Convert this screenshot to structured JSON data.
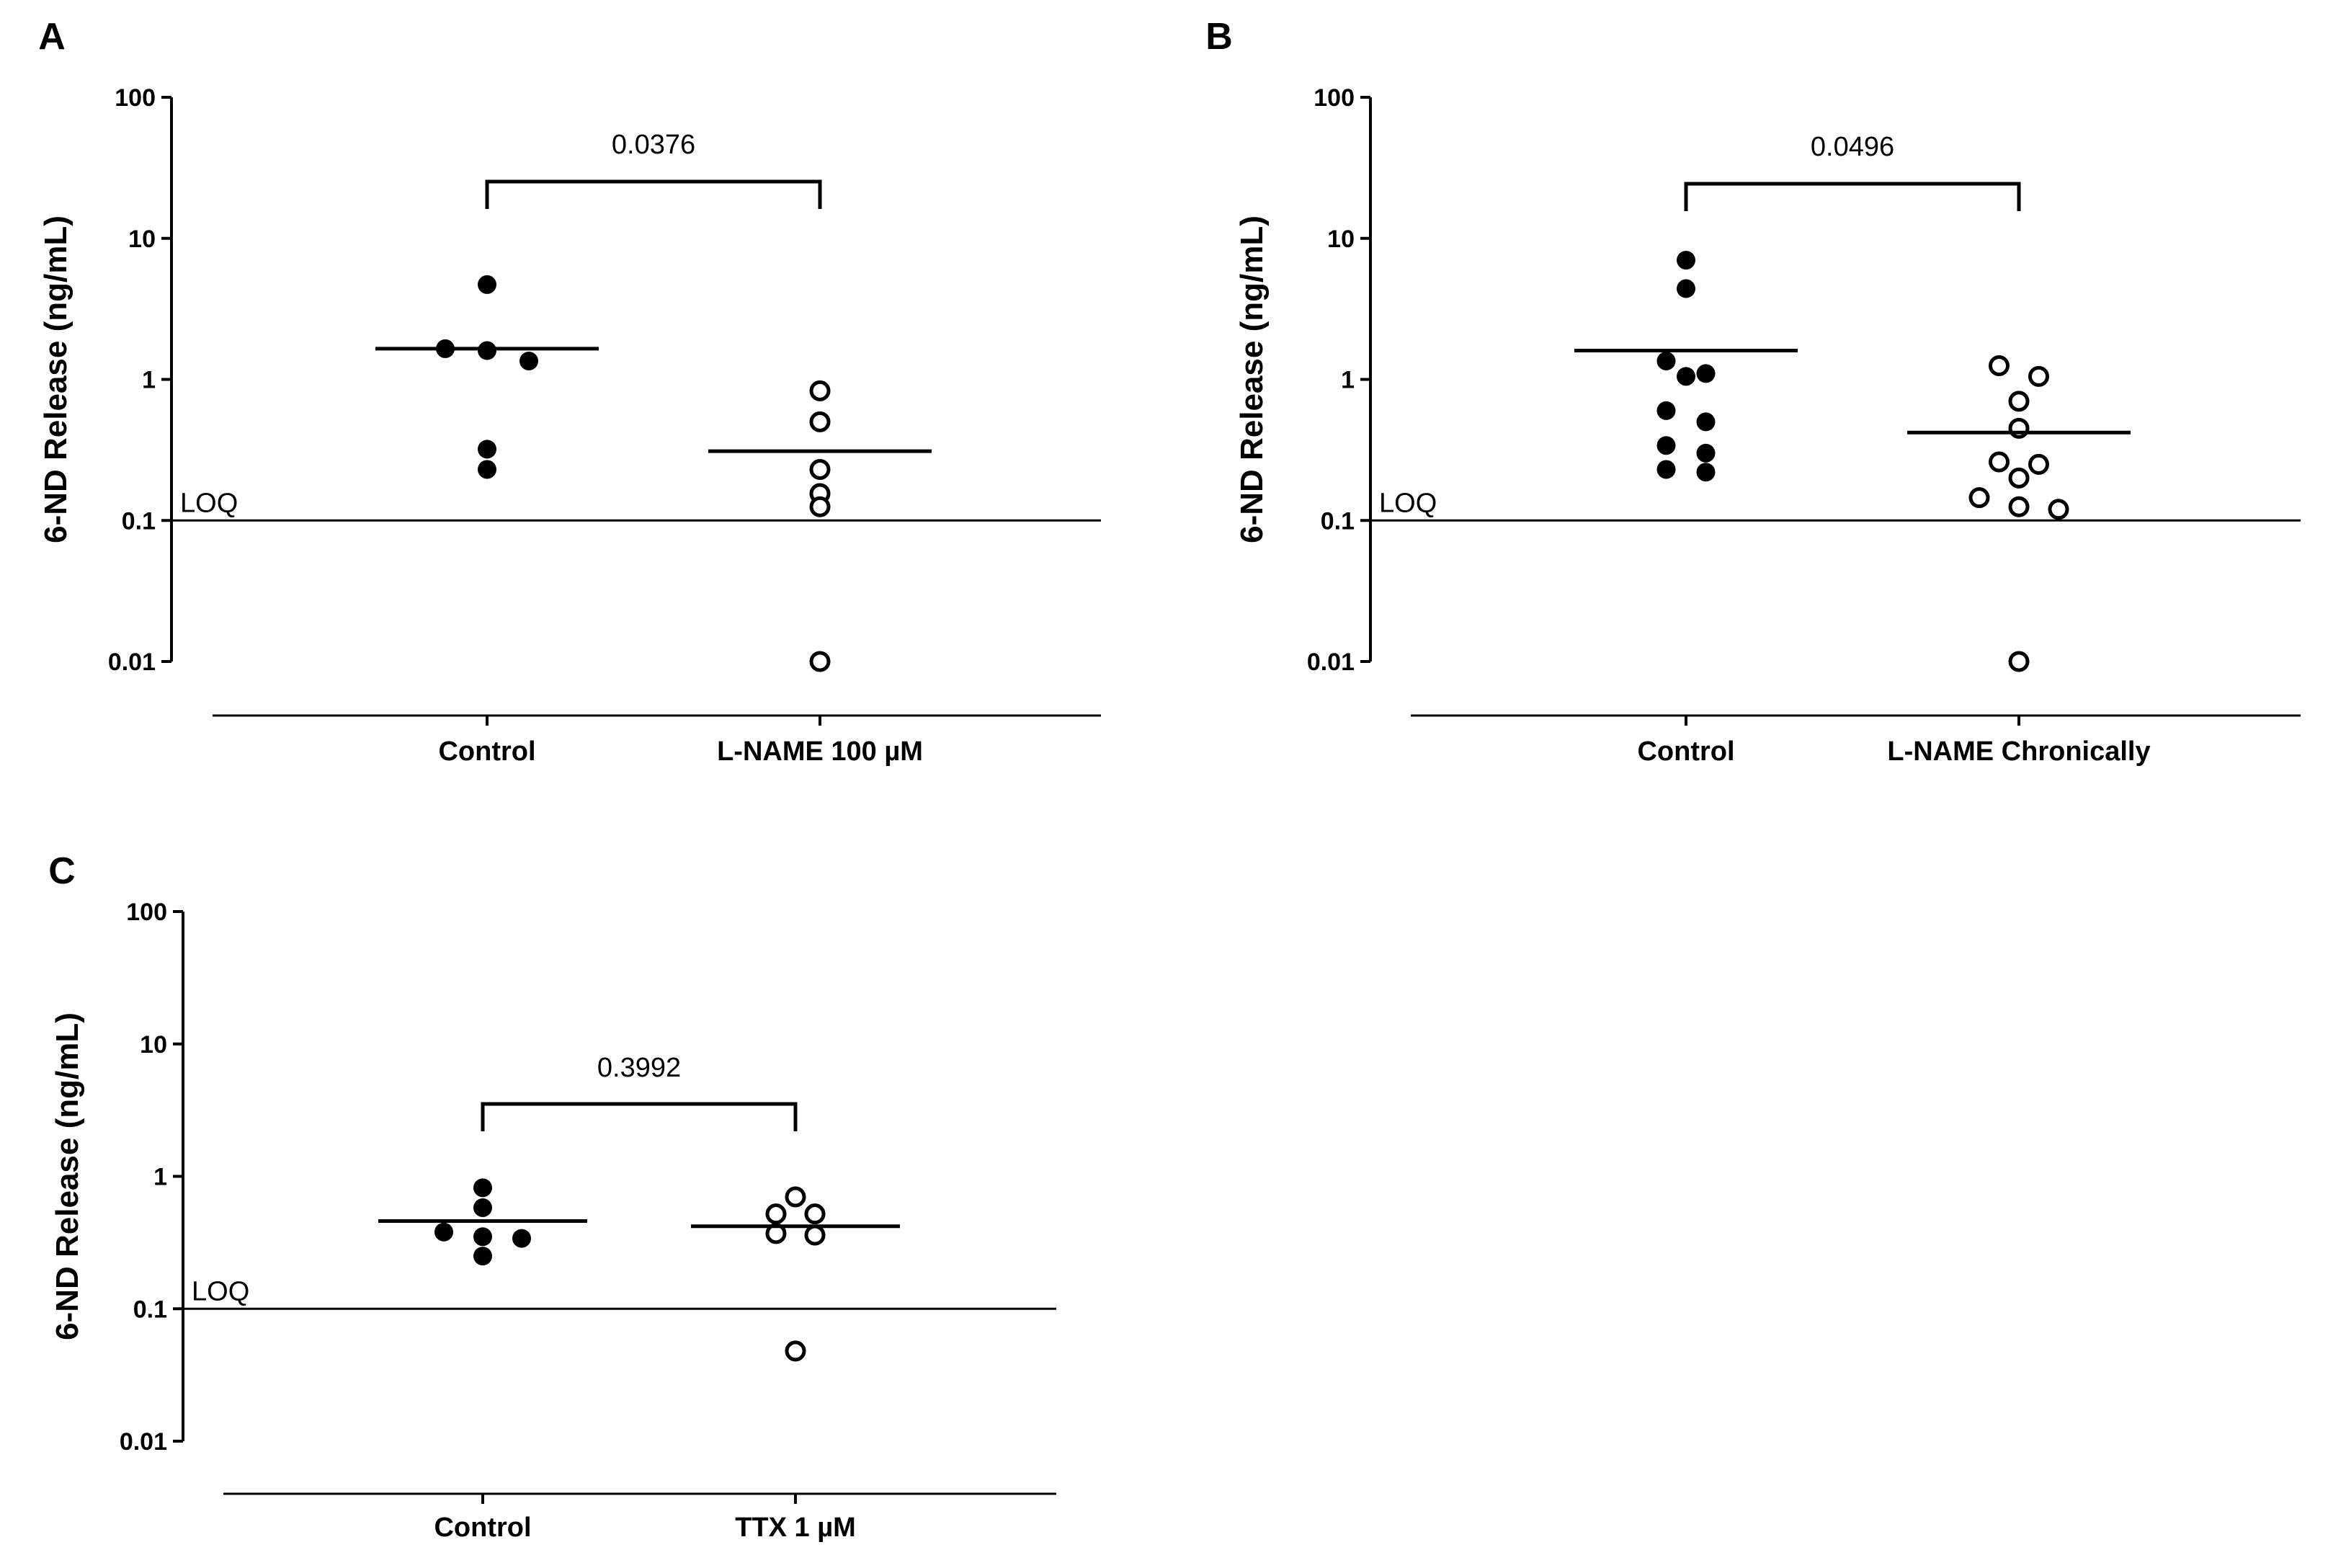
{
  "chart_data": [
    {
      "type": "scatter",
      "panel": "A",
      "ylabel": "6-ND Release (ng/mL)",
      "yscale": "log",
      "ylim": [
        0.01,
        100
      ],
      "yticks": [
        100,
        10,
        1,
        0.1,
        0.01
      ],
      "ytick_labels": [
        "100",
        "10",
        "1",
        "0.1",
        "0.01"
      ],
      "loq": {
        "value": 0.1,
        "label": "LOQ"
      },
      "categories": [
        "Control",
        "L-NAME 100 µM"
      ],
      "groups": [
        {
          "name": "Control",
          "marker": "filled",
          "values": [
            4.7,
            1.65,
            1.6,
            1.35,
            0.32,
            0.23
          ],
          "mean": 1.65
        },
        {
          "name": "L-NAME 100 µM",
          "marker": "open",
          "values": [
            0.83,
            0.5,
            0.23,
            0.155,
            0.125,
            0.01
          ],
          "mean": 0.31
        }
      ],
      "comparison": {
        "p_value": "0.0376"
      }
    },
    {
      "type": "scatter",
      "panel": "B",
      "ylabel": "6-ND Release (ng/mL)",
      "yscale": "log",
      "ylim": [
        0.01,
        100
      ],
      "yticks": [
        100,
        10,
        1,
        0.1,
        0.01
      ],
      "ytick_labels": [
        "100",
        "10",
        "1",
        "0.1",
        "0.01"
      ],
      "loq": {
        "value": 0.1,
        "label": "LOQ"
      },
      "categories": [
        "Control",
        "L-NAME Chronically"
      ],
      "groups": [
        {
          "name": "Control",
          "marker": "filled",
          "values": [
            7.0,
            4.4,
            1.35,
            1.1,
            1.05,
            0.6,
            0.5,
            0.34,
            0.3,
            0.23,
            0.22
          ],
          "mean": 1.6
        },
        {
          "name": "L-NAME Chronically",
          "marker": "open",
          "values": [
            1.25,
            1.05,
            0.7,
            0.45,
            0.26,
            0.25,
            0.2,
            0.145,
            0.125,
            0.12,
            0.01
          ],
          "mean": 0.42
        }
      ],
      "comparison": {
        "p_value": "0.0496"
      }
    },
    {
      "type": "scatter",
      "panel": "C",
      "ylabel": "6-ND Release (ng/mL)",
      "yscale": "log",
      "ylim": [
        0.01,
        100
      ],
      "yticks": [
        100,
        10,
        1,
        0.1,
        0.01
      ],
      "ytick_labels": [
        "100",
        "10",
        "1",
        "0.1",
        "0.01"
      ],
      "loq": {
        "value": 0.1,
        "label": "LOQ"
      },
      "categories": [
        "Control",
        "TTX 1 µM"
      ],
      "groups": [
        {
          "name": "Control",
          "marker": "filled",
          "values": [
            0.82,
            0.58,
            0.38,
            0.35,
            0.34,
            0.25
          ],
          "mean": 0.46
        },
        {
          "name": "TTX 1 µM",
          "marker": "open",
          "values": [
            0.7,
            0.52,
            0.52,
            0.37,
            0.36,
            0.048
          ],
          "mean": 0.42
        }
      ],
      "comparison": {
        "p_value": "0.3992"
      }
    }
  ]
}
